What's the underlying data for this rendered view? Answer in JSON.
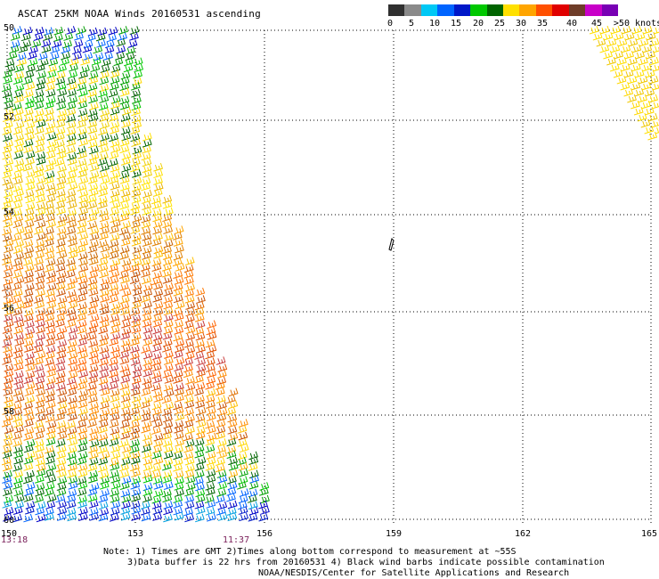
{
  "title": "ASCAT 25KM NOAA Winds 20160531 ascending",
  "legend": {
    "colors": [
      "#303030",
      "#8a8a8a",
      "#00c8f5",
      "#0064ff",
      "#0018c8",
      "#00c800",
      "#006400",
      "#ffe000",
      "#ffa500",
      "#ff5000",
      "#e00000",
      "#6e3c28",
      "#c800c8",
      "#7800b4"
    ],
    "tick_labels": [
      "0",
      "5",
      "10",
      "15",
      "20",
      "25",
      "30",
      "35",
      "40",
      "45",
      ">50 knots"
    ]
  },
  "lat_labels": [
    "50",
    "52",
    "54",
    "56",
    "58",
    "60"
  ],
  "lon_labels": [
    "150",
    "153",
    "156",
    "159",
    "162",
    "165"
  ],
  "time_labels": [
    "13:18",
    "11:37"
  ],
  "notes": {
    "line1": "Note: 1) Times are GMT 2)Times along bottom correspond to measurement at ~55S",
    "line2": "3)Data buffer is 22 hrs from 20160531 4) Black wind barbs indicate possible contamination",
    "line3": "NOAA/NESDIS/Center for Satellite Applications and Research"
  },
  "map_layers": [
    "wind-barbs-main-swath",
    "wind-barbs-northeast-swath",
    "lat-lon-grid",
    "land-outline"
  ]
}
